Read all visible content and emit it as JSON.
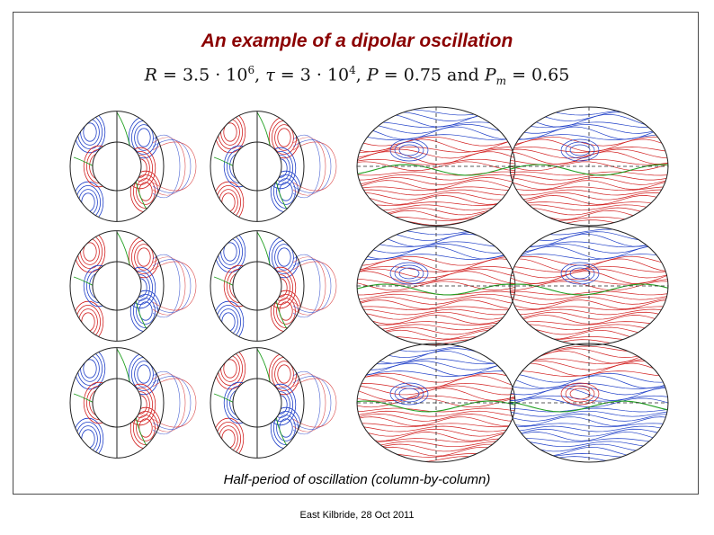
{
  "slide": {
    "title": "An example of a dipolar oscillation",
    "formula": {
      "R_label": "R",
      "R_value": "3.5 · 10",
      "R_exp": "6",
      "tau_label": "τ",
      "tau_value": "3 · 10",
      "tau_exp": "4",
      "P_label": "P",
      "P_value": "0.75",
      "and_word": "and",
      "Pm_label": "P",
      "Pm_sub": "m",
      "Pm_value": "0.65"
    },
    "caption": "Half-period of oscillation (column-by-column)",
    "footer": "East Kilbride, 28 Oct 2011"
  },
  "colors": {
    "title": "#8b0000",
    "positive_contours": "#d22020",
    "negative_contours": "#1f3fc8",
    "zero_contour": "#22a022",
    "outline": "#222222"
  },
  "figure": {
    "rows": 3,
    "columns": 4,
    "column_types": [
      "meridional-section",
      "meridional-section",
      "spherical-projection",
      "spherical-projection"
    ]
  }
}
